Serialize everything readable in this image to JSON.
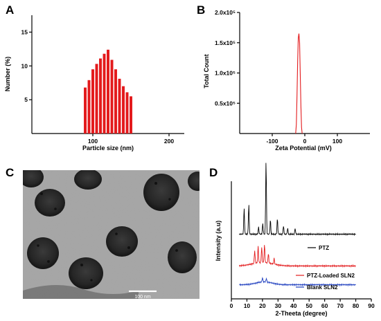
{
  "panels": {
    "a": "A",
    "b": "B",
    "c": "C",
    "d": "D"
  },
  "chart_data": [
    {
      "panel": "A",
      "type": "bar",
      "xlabel": "Particle size (nm)",
      "ylabel": "Number (%)",
      "xlim": [
        20,
        220
      ],
      "ylim": [
        0,
        17.5
      ],
      "xticks": [
        "100",
        "200"
      ],
      "yticks": [
        "5",
        "10",
        "15"
      ],
      "color": "#e31a1c",
      "x": [
        90,
        95,
        100,
        105,
        110,
        115,
        120,
        125,
        130,
        135,
        140,
        145,
        150
      ],
      "values": [
        6.8,
        7.9,
        9.5,
        10.3,
        11.1,
        11.8,
        12.4,
        10.9,
        9.5,
        8.1,
        7.0,
        6.1,
        5.5
      ]
    },
    {
      "panel": "B",
      "type": "line",
      "xlabel": "Zeta Potential (mV)",
      "ylabel": "Total Count",
      "xlim": [
        -200,
        200
      ],
      "ylim": [
        0,
        200000
      ],
      "xticks": [
        "-100",
        "0",
        "100"
      ],
      "yticks": [
        "0.5x10⁵",
        "1.0x10⁵",
        "1.5x10⁵",
        "2.0x10⁵"
      ],
      "color": "#e31a1c",
      "x": [
        -28,
        -26,
        -24,
        -22,
        -20,
        -18,
        -16,
        -14,
        -12,
        -10,
        -8
      ],
      "y": [
        0,
        15000,
        60000,
        120000,
        158000,
        165000,
        150000,
        100000,
        45000,
        10000,
        0
      ]
    },
    {
      "panel": "D",
      "type": "line",
      "xlabel": "2-Theeta (degree)",
      "ylabel": "Intensity (a.u)",
      "xlim": [
        0,
        90
      ],
      "xticks": [
        "0",
        "10",
        "20",
        "30",
        "40",
        "50",
        "60",
        "70",
        "80",
        "90"
      ],
      "series": [
        {
          "name": "PTZ",
          "color": "#000000",
          "offset": 0.55,
          "peaks": [
            [
              8.2,
              0.22
            ],
            [
              11.2,
              0.25
            ],
            [
              17.5,
              0.06
            ],
            [
              20.2,
              0.09
            ],
            [
              22.3,
              0.62
            ],
            [
              25.1,
              0.12
            ],
            [
              29.6,
              0.13
            ],
            [
              33.5,
              0.07
            ],
            [
              36.2,
              0.05
            ],
            [
              41.0,
              0.05
            ]
          ]
        },
        {
          "name": "PTZ-Loaded SLN2",
          "color": "#e31a1c",
          "offset": 0.28,
          "peaks": [
            [
              15.0,
              0.11
            ],
            [
              17.2,
              0.14
            ],
            [
              19.5,
              0.13
            ],
            [
              21.3,
              0.15
            ],
            [
              23.8,
              0.08
            ],
            [
              27.5,
              0.05
            ]
          ]
        },
        {
          "name": "Blank SLN2",
          "color": "#1f3fbf",
          "offset": 0.12,
          "peaks": [
            [
              20.0,
              0.035
            ],
            [
              22.5,
              0.03
            ]
          ]
        }
      ]
    }
  ],
  "tem": {
    "scale_label": "100 nm"
  }
}
